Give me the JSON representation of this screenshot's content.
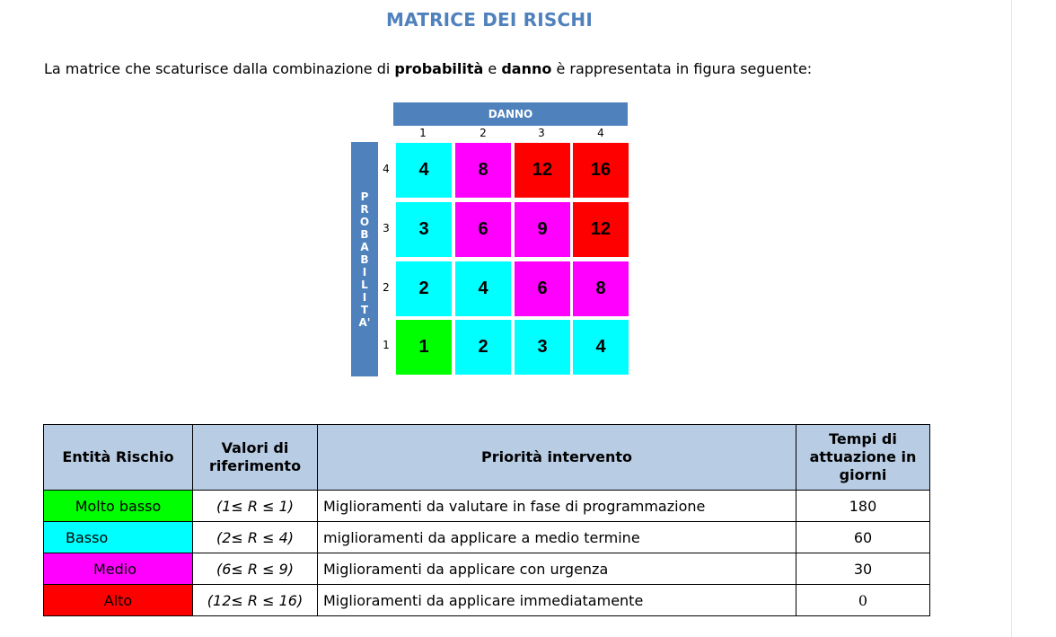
{
  "title": "MATRICE DEI RISCHI",
  "intro": {
    "pre": "La matrice che scaturisce dalla combinazione di ",
    "b1": "probabilità",
    "mid": " e ",
    "b2": "danno",
    "post": " è rappresentata in figura seguente:"
  },
  "matrix": {
    "danno_label": "DANNO",
    "probabilita_letters": [
      "P",
      "R",
      "O",
      "B",
      "A",
      "B",
      "I",
      "L",
      "I",
      "T",
      "A'"
    ],
    "columns": [
      "1",
      "2",
      "3",
      "4"
    ],
    "row_labels": [
      "4",
      "3",
      "2",
      "1"
    ],
    "cells": [
      [
        "4",
        "8",
        "12",
        "16"
      ],
      [
        "3",
        "6",
        "9",
        "12"
      ],
      [
        "2",
        "4",
        "6",
        "8"
      ],
      [
        "1",
        "2",
        "3",
        "4"
      ]
    ],
    "cell_colors": [
      [
        "#00ffff",
        "#ff00ff",
        "#ff0000",
        "#ff0000"
      ],
      [
        "#00ffff",
        "#ff00ff",
        "#ff00ff",
        "#ff0000"
      ],
      [
        "#00ffff",
        "#00ffff",
        "#ff00ff",
        "#ff00ff"
      ],
      [
        "#00ff00",
        "#00ffff",
        "#00ffff",
        "#00ffff"
      ]
    ]
  },
  "legend": {
    "headers": [
      "Entità Rischio",
      "Valori di riferimento",
      "Priorità intervento",
      "Tempi di attuazione in giorni"
    ],
    "rows": [
      {
        "entita": "Molto basso",
        "color": "#00ff00",
        "valori": "(1≤ R ≤ 1)",
        "priorita": "Miglioramenti da valutare in fase di programmazione",
        "tempi": "180"
      },
      {
        "entita": "Basso",
        "color": "#00ffff",
        "valori": "(2≤ R ≤ 4)",
        "priorita": "miglioramenti da applicare a medio termine",
        "tempi": "60"
      },
      {
        "entita": "Medio",
        "color": "#ff00ff",
        "valori": "(6≤ R ≤ 9)",
        "priorita": "Miglioramenti da applicare con urgenza",
        "tempi": "30"
      },
      {
        "entita": "Alto",
        "color": "#ff0000",
        "valori": "(12≤ R ≤ 16)",
        "priorita": "Miglioramenti da applicare immediatamente",
        "tempi": "0"
      }
    ]
  }
}
